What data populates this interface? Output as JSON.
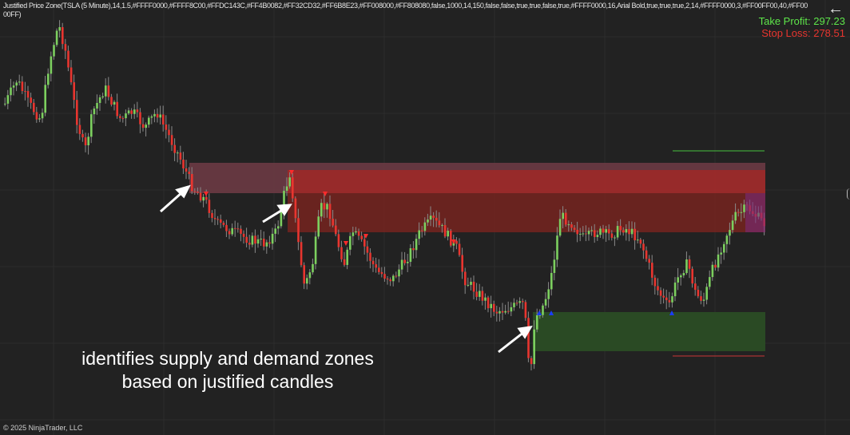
{
  "indicator_header": "Justified Price Zone(TSLA (5 Minute),14,1.5,#FFFF0000,#FFFF8C00,#FFDC143C,#FF4B0082,#FF32CD32,#FF6B8E23,#FF008000,#FF808080,false,1000,14,150,false,false,true,true,false,true,#FFFF0000,16,Arial Bold,true,true,true,2,14,#FFFF0000,3,#FF00FF00,40,#FF0000FF)",
  "take_profit": "Take Profit: 297.23",
  "stop_loss": "Stop Loss: 278.51",
  "caption_line1": "identifies supply and demand zones",
  "caption_line2": "based on justified candles",
  "copyright": "© 2025 NinjaTrader, LLC",
  "icons": {
    "back": "arrow-left-icon"
  },
  "colors": {
    "background": "#222222",
    "up_candle": "#7ccf5f",
    "down_candle": "#e8352f",
    "supply_zone": "#9e2b2b",
    "supply_zone_dark": "#6e2420",
    "demand_zone": "#2a4a24",
    "take_profit_line": "#3fa33a",
    "stop_loss_line": "#a83232"
  }
}
